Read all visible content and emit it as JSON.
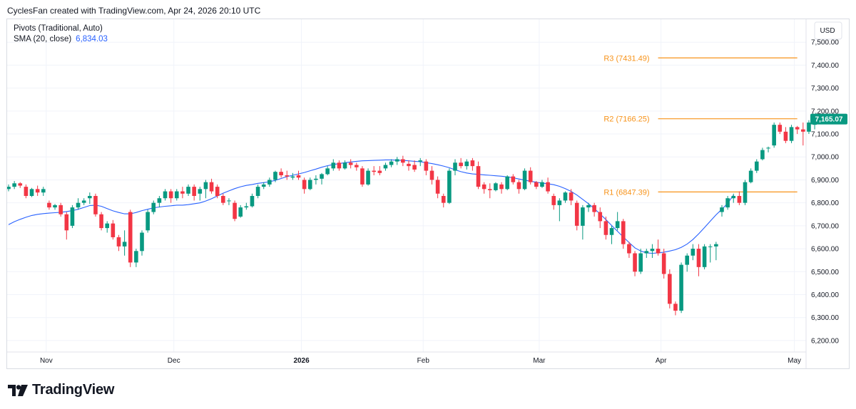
{
  "header": {
    "text": "CyclesFan created with TradingView.com, Apr 24, 2026 20:10 UTC"
  },
  "legend": {
    "pivots_label": "Pivots (Traditional, Auto)",
    "sma_label": "SMA (20, close)",
    "sma_value": "6,834.03"
  },
  "axis": {
    "currency": "USD",
    "last_price_label": "7,165.07"
  },
  "footer": {
    "brand": "TradingView"
  },
  "colors": {
    "up": "#089981",
    "down": "#f23645",
    "sma": "#2962ff",
    "pivot": "#f7931a"
  },
  "chart_data": {
    "type": "candlestick",
    "title": "",
    "ylim": [
      6150,
      7600
    ],
    "y_ticks": [
      6200,
      6300,
      6400,
      6500,
      6600,
      6700,
      6800,
      6900,
      7000,
      7100,
      7200,
      7300,
      7400,
      7500
    ],
    "y_tick_labels": [
      "6,200.00",
      "6,300.00",
      "6,400.00",
      "6,500.00",
      "6,600.00",
      "6,700.00",
      "6,800.00",
      "6,900.00",
      "7,000.00",
      "7,100.00",
      "7,200.00",
      "7,300.00",
      "7,400.00",
      "7,500.00"
    ],
    "x_labels": [
      {
        "label": "Nov",
        "index": 6.5
      },
      {
        "label": "Dec",
        "index": 28.5
      },
      {
        "label": "2026",
        "index": 50.5
      },
      {
        "label": "Feb",
        "index": 71.5
      },
      {
        "label": "Mar",
        "index": 91.5
      },
      {
        "label": "Apr",
        "index": 112.5
      },
      {
        "label": "May",
        "index": 135.5
      }
    ],
    "pivots": [
      {
        "label": "R3 (7431.49)",
        "value": 7431.49,
        "from_index": 112,
        "to_index": 136
      },
      {
        "label": "R2 (7166.25)",
        "value": 7166.25,
        "from_index": 112,
        "to_index": 136
      },
      {
        "label": "R1 (6847.39)",
        "value": 6847.39,
        "from_index": 112,
        "to_index": 136
      }
    ],
    "sma": [
      6705,
      6718,
      6728,
      6737,
      6745,
      6750,
      6753,
      6755,
      6757,
      6759,
      6762,
      6766,
      6772,
      6780,
      6788,
      6790,
      6785,
      6775,
      6765,
      6758,
      6752,
      6752,
      6758,
      6766,
      6772,
      6778,
      6782,
      6785,
      6787,
      6790,
      6790,
      6792,
      6796,
      6800,
      6808,
      6818,
      6830,
      6842,
      6852,
      6862,
      6870,
      6876,
      6880,
      6885,
      6888,
      6892,
      6898,
      6906,
      6914,
      6920,
      6926,
      6932,
      6940,
      6947,
      6955,
      6962,
      6967,
      6971,
      6975,
      6978,
      6981,
      6983,
      6984,
      6985,
      6986,
      6987,
      6987,
      6986,
      6985,
      6983,
      6981,
      6979,
      6975,
      6971,
      6966,
      6960,
      6953,
      6944,
      6936,
      6930,
      6926,
      6924,
      6922,
      6920,
      6918,
      6916,
      6913,
      6909,
      6904,
      6899,
      6894,
      6890,
      6886,
      6883,
      6879,
      6872,
      6862,
      6850,
      6834,
      6815,
      6796,
      6775,
      6751,
      6727,
      6701,
      6676,
      6651,
      6627,
      6604,
      6590,
      6582,
      6580,
      6582,
      6585,
      6590,
      6596,
      6606,
      6620,
      6640,
      6665,
      6692,
      6720,
      6748,
      6772,
      6798,
      6834
    ],
    "candles": [
      [
        6860,
        6880,
        6850,
        6870
      ],
      [
        6870,
        6895,
        6860,
        6885
      ],
      [
        6885,
        6890,
        6865,
        6875
      ],
      [
        6870,
        6880,
        6820,
        6830
      ],
      [
        6830,
        6865,
        6825,
        6860
      ],
      [
        6860,
        6875,
        6830,
        6845
      ],
      [
        6845,
        6870,
        6830,
        6860
      ],
      [
        6800,
        6810,
        6770,
        6780
      ],
      [
        6780,
        6795,
        6770,
        6790
      ],
      [
        6790,
        6800,
        6740,
        6750
      ],
      [
        6750,
        6760,
        6640,
        6680
      ],
      [
        6700,
        6790,
        6690,
        6780
      ],
      [
        6780,
        6820,
        6770,
        6800
      ],
      [
        6800,
        6820,
        6790,
        6810
      ],
      [
        6820,
        6845,
        6795,
        6830
      ],
      [
        6830,
        6840,
        6740,
        6750
      ],
      [
        6750,
        6760,
        6680,
        6690
      ],
      [
        6690,
        6720,
        6670,
        6710
      ],
      [
        6710,
        6725,
        6640,
        6650
      ],
      [
        6650,
        6660,
        6590,
        6610
      ],
      [
        6610,
        6680,
        6570,
        6630
      ],
      [
        6760,
        6770,
        6520,
        6540
      ],
      [
        6540,
        6600,
        6520,
        6590
      ],
      [
        6590,
        6680,
        6570,
        6670
      ],
      [
        6680,
        6770,
        6670,
        6760
      ],
      [
        6760,
        6810,
        6750,
        6800
      ],
      [
        6800,
        6830,
        6780,
        6820
      ],
      [
        6820,
        6860,
        6810,
        6850
      ],
      [
        6850,
        6860,
        6800,
        6820
      ],
      [
        6820,
        6860,
        6810,
        6850
      ],
      [
        6850,
        6870,
        6820,
        6840
      ],
      [
        6840,
        6880,
        6830,
        6870
      ],
      [
        6870,
        6880,
        6810,
        6830
      ],
      [
        6840,
        6870,
        6810,
        6860
      ],
      [
        6860,
        6900,
        6820,
        6890
      ],
      [
        6890,
        6905,
        6840,
        6850
      ],
      [
        6870,
        6880,
        6820,
        6830
      ],
      [
        6830,
        6840,
        6790,
        6800
      ],
      [
        6810,
        6820,
        6790,
        6810
      ],
      [
        6800,
        6810,
        6720,
        6730
      ],
      [
        6740,
        6790,
        6735,
        6780
      ],
      [
        6780,
        6800,
        6770,
        6785
      ],
      [
        6785,
        6840,
        6780,
        6830
      ],
      [
        6830,
        6880,
        6820,
        6870
      ],
      [
        6870,
        6890,
        6860,
        6880
      ],
      [
        6880,
        6910,
        6870,
        6900
      ],
      [
        6900,
        6940,
        6890,
        6935
      ],
      [
        6935,
        6950,
        6910,
        6920
      ],
      [
        6920,
        6940,
        6900,
        6915
      ],
      [
        6910,
        6930,
        6900,
        6915
      ],
      [
        6920,
        6940,
        6900,
        6910
      ],
      [
        6900,
        6910,
        6840,
        6860
      ],
      [
        6860,
        6910,
        6855,
        6900
      ],
      [
        6900,
        6920,
        6880,
        6905
      ],
      [
        6905,
        6930,
        6880,
        6925
      ],
      [
        6925,
        6960,
        6920,
        6950
      ],
      [
        6950,
        6990,
        6940,
        6975
      ],
      [
        6975,
        6985,
        6940,
        6950
      ],
      [
        6950,
        6985,
        6945,
        6975
      ],
      [
        6975,
        6990,
        6950,
        6965
      ],
      [
        6965,
        6975,
        6940,
        6955
      ],
      [
        6950,
        6960,
        6870,
        6880
      ],
      [
        6880,
        6950,
        6875,
        6940
      ],
      [
        6940,
        6960,
        6920,
        6935
      ],
      [
        6940,
        6960,
        6920,
        6930
      ],
      [
        6950,
        6975,
        6940,
        6965
      ],
      [
        6965,
        6990,
        6955,
        6980
      ],
      [
        6980,
        7000,
        6965,
        6990
      ],
      [
        6990,
        7005,
        6960,
        6975
      ],
      [
        6970,
        6985,
        6940,
        6960
      ],
      [
        6965,
        6985,
        6935,
        6945
      ],
      [
        6980,
        6995,
        6960,
        6985
      ],
      [
        6980,
        6990,
        6920,
        6940
      ],
      [
        6940,
        6960,
        6880,
        6900
      ],
      [
        6900,
        6915,
        6820,
        6840
      ],
      [
        6830,
        6840,
        6780,
        6800
      ],
      [
        6800,
        6950,
        6795,
        6940
      ],
      [
        6940,
        6990,
        6920,
        6975
      ],
      [
        6975,
        6995,
        6950,
        6960
      ],
      [
        6960,
        6990,
        6945,
        6980
      ],
      [
        6985,
        6995,
        6940,
        6960
      ],
      [
        6960,
        6980,
        6860,
        6870
      ],
      [
        6880,
        6890,
        6840,
        6860
      ],
      [
        6860,
        6885,
        6820,
        6855
      ],
      [
        6855,
        6890,
        6850,
        6885
      ],
      [
        6880,
        6890,
        6840,
        6860
      ],
      [
        6860,
        6920,
        6855,
        6915
      ],
      [
        6915,
        6925,
        6880,
        6890
      ],
      [
        6890,
        6900,
        6840,
        6860
      ],
      [
        6860,
        6950,
        6855,
        6940
      ],
      [
        6940,
        6955,
        6880,
        6890
      ],
      [
        6890,
        6895,
        6860,
        6870
      ],
      [
        6870,
        6900,
        6865,
        6890
      ],
      [
        6890,
        6910,
        6840,
        6850
      ],
      [
        6830,
        6840,
        6770,
        6790
      ],
      [
        6790,
        6820,
        6720,
        6810
      ],
      [
        6810,
        6850,
        6800,
        6845
      ],
      [
        6845,
        6860,
        6790,
        6810
      ],
      [
        6800,
        6810,
        6680,
        6700
      ],
      [
        6700,
        6790,
        6640,
        6780
      ],
      [
        6780,
        6800,
        6760,
        6790
      ],
      [
        6790,
        6800,
        6740,
        6760
      ],
      [
        6760,
        6780,
        6690,
        6720
      ],
      [
        6720,
        6740,
        6640,
        6660
      ],
      [
        6660,
        6700,
        6620,
        6690
      ],
      [
        6690,
        6760,
        6680,
        6720
      ],
      [
        6720,
        6730,
        6600,
        6620
      ],
      [
        6620,
        6630,
        6560,
        6580
      ],
      [
        6580,
        6590,
        6480,
        6500
      ],
      [
        6500,
        6600,
        6490,
        6580
      ],
      [
        6580,
        6600,
        6560,
        6590
      ],
      [
        6590,
        6620,
        6560,
        6600
      ],
      [
        6600,
        6640,
        6570,
        6580
      ],
      [
        6580,
        6600,
        6470,
        6490
      ],
      [
        6490,
        6510,
        6340,
        6360
      ],
      [
        6360,
        6370,
        6310,
        6330
      ],
      [
        6330,
        6540,
        6320,
        6530
      ],
      [
        6530,
        6580,
        6500,
        6570
      ],
      [
        6570,
        6620,
        6550,
        6600
      ],
      [
        6600,
        6620,
        6480,
        6520
      ],
      [
        6520,
        6620,
        6510,
        6610
      ],
      [
        6610,
        6620,
        6540,
        6610
      ],
      [
        6610,
        6630,
        6550,
        6620
      ],
      [
        6760,
        6790,
        6740,
        6780
      ],
      [
        6780,
        6830,
        6770,
        6820
      ],
      [
        6820,
        6840,
        6800,
        6830
      ],
      [
        6830,
        6850,
        6790,
        6800
      ],
      [
        6800,
        6900,
        6790,
        6890
      ],
      [
        6890,
        6950,
        6885,
        6940
      ],
      [
        6940,
        6990,
        6930,
        6980
      ],
      [
        6990,
        7040,
        6985,
        7030
      ],
      [
        7040,
        7045,
        7020,
        7040
      ],
      [
        7050,
        7150,
        7040,
        7140
      ],
      [
        7140,
        7150,
        7100,
        7110
      ],
      [
        7110,
        7130,
        7060,
        7070
      ],
      [
        7070,
        7140,
        7060,
        7130
      ],
      [
        7130,
        7135,
        7100,
        7120
      ],
      [
        7120,
        7150,
        7050,
        7110
      ],
      [
        7110,
        7160,
        7100,
        7150
      ],
      [
        7140,
        7180,
        7120,
        7165.07
      ]
    ]
  }
}
